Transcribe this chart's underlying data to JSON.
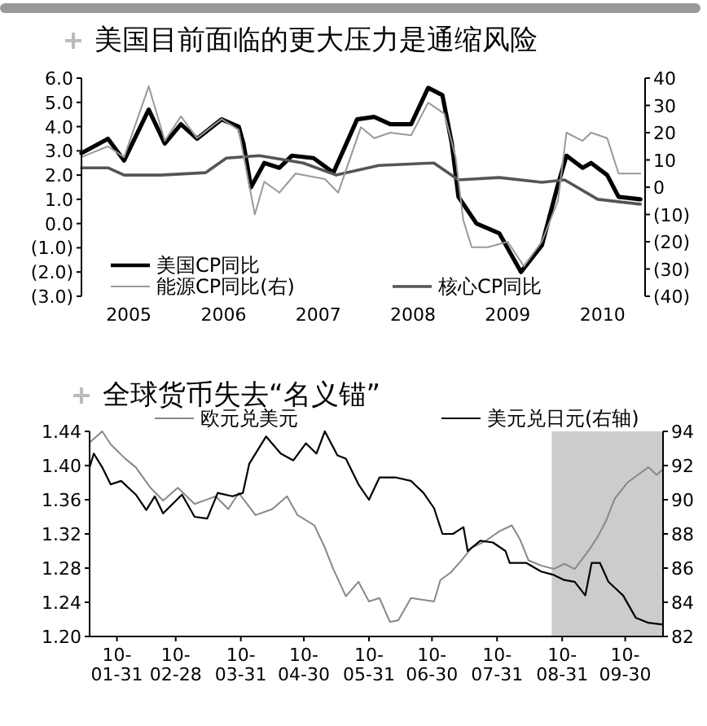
{
  "chart_data": [
    {
      "type": "line",
      "title": "美国目前面临的更大压力是通缩风险",
      "legend": "bottom",
      "xlim": [
        2005,
        2010.95
      ],
      "xticks": [
        {
          "value": 2005.5,
          "label": "2005"
        },
        {
          "value": 2006.5,
          "label": "2006"
        },
        {
          "value": 2007.5,
          "label": "2007"
        },
        {
          "value": 2008.5,
          "label": "2008"
        },
        {
          "value": 2009.5,
          "label": "2009"
        },
        {
          "value": 2010.5,
          "label": "2010"
        }
      ],
      "ylim": [
        -3,
        6
      ],
      "yticks": [
        {
          "value": 6,
          "label": "6.0"
        },
        {
          "value": 5,
          "label": "5.0"
        },
        {
          "value": 4,
          "label": "4.0"
        },
        {
          "value": 3,
          "label": "3.0"
        },
        {
          "value": 2,
          "label": "2.0"
        },
        {
          "value": 1,
          "label": "1.0"
        },
        {
          "value": 0,
          "label": "0.0"
        },
        {
          "value": -1,
          "label": "(1.0)"
        },
        {
          "value": -2,
          "label": "(2.0)"
        },
        {
          "value": -3,
          "label": "(3.0)"
        }
      ],
      "y2lim": [
        -40,
        40
      ],
      "y2ticks": [
        40,
        30,
        20,
        10,
        0,
        {
          "value": -10,
          "label": "(10)"
        },
        {
          "value": -20,
          "label": "(20)"
        },
        {
          "value": -30,
          "label": "(30)"
        },
        {
          "value": -40,
          "label": "(40)"
        }
      ],
      "series": [
        {
          "name": "美国CP同比",
          "color": "#000000",
          "x": [
            2005.0,
            2005.28,
            2005.45,
            2005.71,
            2005.88,
            2006.05,
            2006.22,
            2006.48,
            2006.66,
            2006.71,
            2006.79,
            2006.93,
            2007.09,
            2007.22,
            2007.45,
            2007.66,
            2007.91,
            2008.09,
            2008.26,
            2008.48,
            2008.66,
            2008.81,
            2008.91,
            2008.98,
            2009.17,
            2009.41,
            2009.64,
            2009.86,
            2010.03,
            2010.12,
            2010.29,
            2010.38,
            2010.55,
            2010.67,
            2010.9
          ],
          "values": [
            2.9,
            3.5,
            2.6,
            4.7,
            3.3,
            4.1,
            3.5,
            4.3,
            4.0,
            3.3,
            1.5,
            2.5,
            2.3,
            2.8,
            2.7,
            2.1,
            4.3,
            4.4,
            4.1,
            4.1,
            5.6,
            5.3,
            3.3,
            1.1,
            0.0,
            -0.4,
            -2.0,
            -0.9,
            1.6,
            2.8,
            2.3,
            2.5,
            2.0,
            1.1,
            1.0
          ]
        },
        {
          "name": "核心CP同比",
          "color": "#555555",
          "x": [
            2005.0,
            2005.28,
            2005.45,
            2005.84,
            2006.31,
            2006.53,
            2006.88,
            2007.34,
            2007.69,
            2008.14,
            2008.72,
            2008.98,
            2009.41,
            2009.86,
            2010.1,
            2010.45,
            2010.9
          ],
          "values": [
            2.3,
            2.3,
            2.0,
            2.0,
            2.1,
            2.7,
            2.8,
            2.5,
            2.0,
            2.4,
            2.5,
            1.8,
            1.9,
            1.7,
            1.8,
            1.0,
            0.8
          ]
        },
        {
          "name": "能源CP同比(右)",
          "color": "#999999",
          "axis": "y2",
          "x": [
            2005.0,
            2005.28,
            2005.45,
            2005.71,
            2005.88,
            2006.05,
            2006.22,
            2006.48,
            2006.66,
            2006.83,
            2006.93,
            2007.09,
            2007.26,
            2007.57,
            2007.71,
            2007.95,
            2008.09,
            2008.26,
            2008.48,
            2008.66,
            2008.83,
            2008.95,
            2009.03,
            2009.12,
            2009.29,
            2009.5,
            2009.67,
            2009.86,
            2010.03,
            2010.12,
            2010.29,
            2010.38,
            2010.55,
            2010.67,
            2010.9
          ],
          "values": [
            11,
            15,
            11,
            37,
            17,
            26,
            18,
            25,
            21,
            -10,
            2,
            -2,
            5,
            3,
            -2,
            22,
            18,
            20,
            19,
            31,
            27,
            11,
            -12,
            -22,
            -22,
            -20,
            -29,
            -20,
            -5,
            20,
            17,
            20,
            18,
            5,
            5
          ]
        }
      ]
    },
    {
      "type": "line",
      "title": "全球货币失去“名义锚”",
      "legend": "top",
      "xlim": [
        "2010-01-18",
        "2010-10-18"
      ],
      "xticks": [
        {
          "value": "2010-01-31",
          "label": "10-\n01-31"
        },
        {
          "value": "2010-02-28",
          "label": "10-\n02-28"
        },
        {
          "value": "2010-03-31",
          "label": "10-\n03-31"
        },
        {
          "value": "2010-04-30",
          "label": "10-\n04-30"
        },
        {
          "value": "2010-05-31",
          "label": "10-\n05-31"
        },
        {
          "value": "2010-06-30",
          "label": "10-\n06-30"
        },
        {
          "value": "2010-07-31",
          "label": "10-\n07-31"
        },
        {
          "value": "2010-08-31",
          "label": "10-\n08-31"
        },
        {
          "value": "2010-09-30",
          "label": "10-\n09-30"
        }
      ],
      "ylim": [
        1.2,
        1.44
      ],
      "yticks": [
        {
          "value": 1.2,
          "label": "1.20"
        },
        1.24,
        1.28,
        1.32,
        1.36,
        {
          "value": 1.4,
          "label": "1.40"
        },
        1.44
      ],
      "y2lim": [
        82,
        94
      ],
      "y2ticks": [
        82,
        84,
        86,
        88,
        90,
        92,
        94
      ],
      "bands": [
        {
          "axis": "x",
          "from": "2010-08-26",
          "to": "2010-10-18",
          "color": "#cccccc"
        }
      ],
      "series": [
        {
          "name": "欧元兑美元",
          "color": "#888888",
          "x": [
            "2010-01-18",
            "2010-01-24",
            "2010-01-28",
            "2010-02-04",
            "2010-02-09",
            "2010-02-16",
            "2010-02-22",
            "2010-03-01",
            "2010-03-09",
            "2010-03-19",
            "2010-03-25",
            "2010-03-30",
            "2010-04-07",
            "2010-04-15",
            "2010-04-22",
            "2010-04-27",
            "2010-05-05",
            "2010-05-10",
            "2010-05-14",
            "2010-05-20",
            "2010-05-26",
            "2010-05-31",
            "2010-06-05",
            "2010-06-10",
            "2010-06-14",
            "2010-06-20",
            "2010-07-01",
            "2010-07-04",
            "2010-07-09",
            "2010-07-14",
            "2010-07-19",
            "2010-07-25",
            "2010-08-01",
            "2010-08-07",
            "2010-08-11",
            "2010-08-15",
            "2010-08-21",
            "2010-08-27",
            "2010-09-01",
            "2010-09-06",
            "2010-09-13",
            "2010-09-17",
            "2010-09-21",
            "2010-09-25",
            "2010-10-01",
            "2010-10-06",
            "2010-10-11",
            "2010-10-15",
            "2010-10-18"
          ],
          "values": [
            1.427,
            1.44,
            1.425,
            1.408,
            1.398,
            1.374,
            1.359,
            1.374,
            1.355,
            1.364,
            1.349,
            1.368,
            1.342,
            1.349,
            1.364,
            1.342,
            1.33,
            1.304,
            1.279,
            1.247,
            1.264,
            1.241,
            1.245,
            1.217,
            1.219,
            1.245,
            1.241,
            1.266,
            1.275,
            1.289,
            1.304,
            1.311,
            1.323,
            1.33,
            1.313,
            1.289,
            1.283,
            1.279,
            1.285,
            1.279,
            1.302,
            1.317,
            1.336,
            1.361,
            1.38,
            1.389,
            1.398,
            1.389,
            1.396
          ]
        },
        {
          "name": "美元兑日元(右轴)",
          "color": "#000000",
          "axis": "y2",
          "x": [
            "2010-01-18",
            "2010-01-20",
            "2010-01-24",
            "2010-01-28",
            "2010-02-02",
            "2010-02-09",
            "2010-02-14",
            "2010-02-18",
            "2010-02-22",
            "2010-03-03",
            "2010-03-09",
            "2010-03-15",
            "2010-03-20",
            "2010-03-27",
            "2010-04-01",
            "2010-04-04",
            "2010-04-12",
            "2010-04-19",
            "2010-04-25",
            "2010-05-01",
            "2010-05-06",
            "2010-05-10",
            "2010-05-16",
            "2010-05-20",
            "2010-05-26",
            "2010-05-31",
            "2010-06-05",
            "2010-06-13",
            "2010-06-20",
            "2010-06-26",
            "2010-07-01",
            "2010-07-05",
            "2010-07-10",
            "2010-07-15",
            "2010-07-17",
            "2010-07-23",
            "2010-07-29",
            "2010-08-04",
            "2010-08-06",
            "2010-08-14",
            "2010-08-21",
            "2010-08-27",
            "2010-09-01",
            "2010-09-06",
            "2010-09-11",
            "2010-09-14",
            "2010-09-18",
            "2010-09-22",
            "2010-09-29",
            "2010-10-05",
            "2010-10-11",
            "2010-10-18"
          ],
          "values": [
            91.9,
            92.7,
            91.9,
            90.9,
            91.1,
            90.3,
            89.4,
            90.2,
            89.2,
            90.3,
            89.0,
            88.9,
            90.4,
            90.2,
            90.4,
            92.1,
            93.7,
            92.7,
            92.3,
            93.3,
            92.7,
            94.0,
            92.6,
            92.4,
            90.9,
            90.0,
            91.3,
            91.3,
            91.1,
            90.4,
            89.5,
            88.0,
            88.0,
            88.4,
            87.0,
            87.6,
            87.5,
            87.0,
            86.3,
            86.3,
            85.8,
            85.6,
            85.3,
            85.2,
            84.4,
            86.3,
            86.3,
            85.2,
            84.4,
            83.1,
            82.8,
            82.7
          ]
        }
      ]
    }
  ]
}
